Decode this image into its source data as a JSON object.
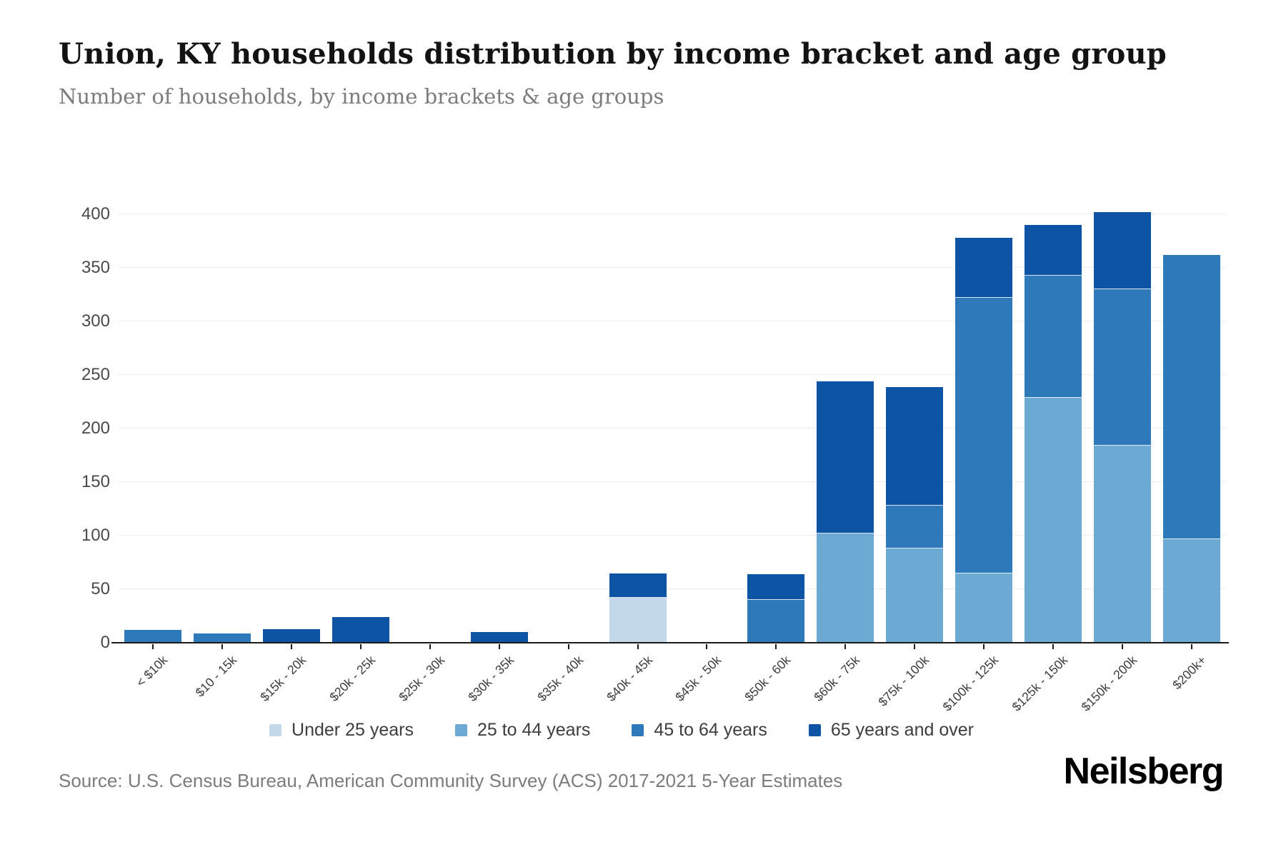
{
  "header": {
    "title": "Union, KY households distribution by income bracket and age group",
    "subtitle": "Number of households, by income brackets & age groups"
  },
  "chart_data": {
    "type": "bar",
    "stacked": true,
    "title": "Union, KY households distribution by income bracket and age group",
    "xlabel": "",
    "ylabel": "",
    "ylim": [
      0,
      400
    ],
    "yticks": [
      0,
      50,
      100,
      150,
      200,
      250,
      300,
      350,
      400
    ],
    "grid": true,
    "legend_position": "bottom",
    "categories": [
      "< $10k",
      "$10 - 15k",
      "$15k - 20k",
      "$20k - 25k",
      "$25k - 30k",
      "$30k - 35k",
      "$35k - 40k",
      "$40k - 45k",
      "$45k - 50k",
      "$50k - 60k",
      "$60k - 75k",
      "$75k - 100k",
      "$100k - 125k",
      "$125k - 150k",
      "$150k - 200k",
      "$200k+"
    ],
    "series": [
      {
        "name": "Under 25 years",
        "color": "#c3d9ea",
        "values": [
          0,
          0,
          0,
          0,
          0,
          0,
          0,
          42,
          0,
          0,
          0,
          0,
          0,
          0,
          0,
          0
        ]
      },
      {
        "name": "25 to 44 years",
        "color": "#6caad3",
        "values": [
          0,
          0,
          0,
          0,
          0,
          0,
          0,
          0,
          0,
          0,
          102,
          88,
          65,
          229,
          184,
          97
        ]
      },
      {
        "name": "45 to 64 years",
        "color": "#2e79b9",
        "values": [
          12,
          9,
          0,
          0,
          0,
          0,
          0,
          0,
          0,
          40,
          0,
          40,
          257,
          114,
          146,
          265
        ]
      },
      {
        "name": "65 years and over",
        "color": "#0d55a4",
        "values": [
          0,
          0,
          13,
          24,
          0,
          10,
          0,
          23,
          0,
          24,
          142,
          111,
          56,
          47,
          72,
          0
        ]
      }
    ]
  },
  "footer": {
    "source": "Source: U.S. Census Bureau, American Community Survey (ACS) 2017-2021 5-Year Estimates",
    "brand": "Neilsberg"
  }
}
